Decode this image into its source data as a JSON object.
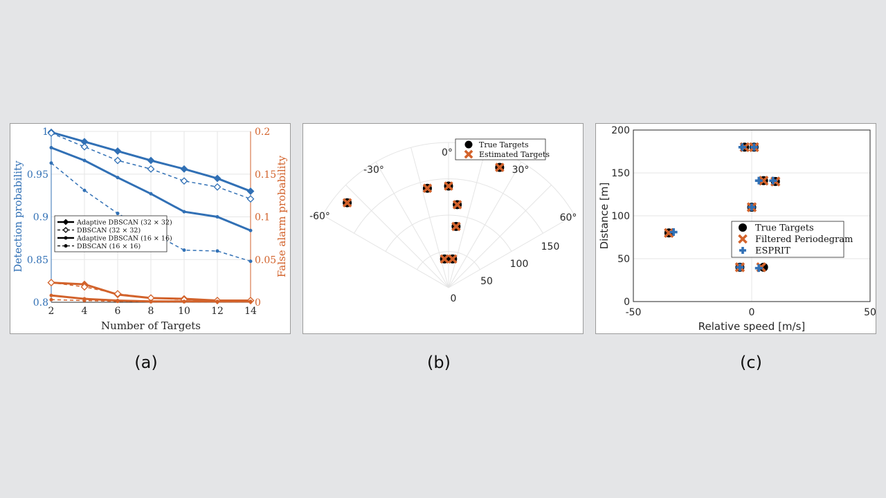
{
  "captions": [
    "(a)",
    "(b)",
    "(c)"
  ],
  "colors": {
    "blue": "#3170b5",
    "orange": "#d2622b",
    "black": "#000000",
    "grid": "#e6e6e6",
    "background": "#e4e5e7"
  },
  "chart_data": [
    {
      "type": "line",
      "xlabel": "Number of Targets",
      "ylabel_left": "Detection probability",
      "ylabel_right": "False alarm probability",
      "x": [
        2,
        4,
        6,
        8,
        10,
        12,
        14
      ],
      "xticks": [
        "2",
        "4",
        "6",
        "8",
        "10",
        "12",
        "14"
      ],
      "ylim_left": [
        0.8,
        1.0
      ],
      "yticks_left": [
        "0.8",
        "0.85",
        "0.9",
        "0.95",
        "1"
      ],
      "ylim_right": [
        0,
        0.2
      ],
      "yticks_right": [
        "0",
        "0.05",
        "0.1",
        "0.15",
        "0.2"
      ],
      "grid": true,
      "legend_position": "center-left",
      "series": [
        {
          "name": "Adaptive DBSCAN (32 × 32)",
          "axis": "left",
          "style": "solid",
          "marker": "diamond-filled",
          "values": [
            0.999,
            0.988,
            0.977,
            0.966,
            0.956,
            0.945,
            0.93
          ]
        },
        {
          "name": "DBSCAN (32 × 32)",
          "axis": "left",
          "style": "dashed",
          "marker": "diamond-open",
          "values": [
            0.998,
            0.982,
            0.966,
            0.956,
            0.942,
            0.935,
            0.921
          ]
        },
        {
          "name": "Adaptive DBSCAN (16 × 16)",
          "axis": "left",
          "style": "solid",
          "marker": "dot",
          "values": [
            0.981,
            0.966,
            0.946,
            0.927,
            0.906,
            0.9,
            0.884
          ]
        },
        {
          "name": "DBSCAN (16 × 16)",
          "axis": "left",
          "style": "dashed",
          "marker": "dot",
          "values": [
            0.963,
            0.931,
            0.904,
            0.882,
            0.861,
            0.86,
            0.848
          ]
        },
        {
          "name": "Adaptive DBSCAN (32 × 32)",
          "axis": "right",
          "style": "solid",
          "marker": "diamond-filled",
          "values": [
            0.023,
            0.021,
            0.009,
            0.005,
            0.004,
            0.002,
            0.002
          ]
        },
        {
          "name": "DBSCAN (32 × 32)",
          "axis": "right",
          "style": "dashed",
          "marker": "diamond-open",
          "values": [
            0.023,
            0.018,
            0.01,
            0.005,
            0.003,
            0.002,
            0.002
          ]
        },
        {
          "name": "Adaptive DBSCAN (16 × 16)",
          "axis": "right",
          "style": "solid",
          "marker": "dot",
          "values": [
            0.008,
            0.004,
            0.002,
            0.001,
            0.001,
            0.001,
            0.001
          ]
        },
        {
          "name": "DBSCAN (16 × 16)",
          "axis": "right",
          "style": "dashed",
          "marker": "dot",
          "values": [
            0.003,
            0.002,
            0.001,
            0.0005,
            0.0005,
            0.0005,
            0.0005
          ]
        }
      ]
    },
    {
      "type": "scatter",
      "coordinates": "polar",
      "theta_range": [
        -60,
        60
      ],
      "r_range": [
        0,
        200
      ],
      "theta_ticks": [
        "-60°",
        "-30°",
        "0°",
        "30°",
        "60°"
      ],
      "r_ticks": [
        "0",
        "50",
        "100",
        "150"
      ],
      "grid": true,
      "legend_position": "top",
      "series": [
        {
          "name": "True Targets",
          "marker": "circle",
          "color": "#000000",
          "points": [
            [
              8,
              40
            ],
            [
              -8,
              40
            ],
            [
              7,
              85
            ],
            [
              6,
              115
            ],
            [
              0,
              140
            ],
            [
              -12,
              140
            ],
            [
              23,
              180
            ],
            [
              -50,
              182
            ]
          ]
        },
        {
          "name": "Estimated Targets",
          "marker": "cross",
          "color": "#d2622b",
          "points": [
            [
              8,
              40
            ],
            [
              -8,
              40
            ],
            [
              7,
              85
            ],
            [
              6,
              115
            ],
            [
              0,
              140
            ],
            [
              -12,
              140
            ],
            [
              23,
              180
            ],
            [
              -50,
              182
            ]
          ]
        }
      ]
    },
    {
      "type": "scatter",
      "xlabel": "Relative speed [m/s]",
      "ylabel": "Distance [m]",
      "xlim": [
        -50,
        50
      ],
      "ylim": [
        0,
        200
      ],
      "xticks": [
        "-50",
        "0",
        "50"
      ],
      "yticks": [
        "0",
        "50",
        "100",
        "150",
        "200"
      ],
      "grid": true,
      "legend_position": "center-right",
      "series": [
        {
          "name": "True Targets",
          "marker": "circle",
          "color": "#000000",
          "points": [
            [
              -35,
              80
            ],
            [
              -5,
              40
            ],
            [
              5,
              40
            ],
            [
              0,
              110
            ],
            [
              5,
              141
            ],
            [
              10,
              140
            ],
            [
              -3,
              180
            ],
            [
              1,
              180
            ]
          ]
        },
        {
          "name": "Filtered Periodegram",
          "marker": "cross",
          "color": "#d2622b",
          "points": [
            [
              -35,
              80
            ],
            [
              -5,
              40
            ],
            [
              4,
              40
            ],
            [
              0,
              110
            ],
            [
              5,
              141
            ],
            [
              10,
              140
            ],
            [
              -3,
              180
            ],
            [
              1,
              180
            ]
          ]
        },
        {
          "name": "ESPRIT",
          "marker": "plus",
          "color": "#3170b5",
          "points": [
            [
              -33,
              81
            ],
            [
              -5,
              40
            ],
            [
              3,
              39
            ],
            [
              0,
              110
            ],
            [
              3,
              141
            ],
            [
              9,
              141
            ],
            [
              -4,
              180
            ],
            [
              1,
              180
            ]
          ]
        }
      ]
    }
  ]
}
